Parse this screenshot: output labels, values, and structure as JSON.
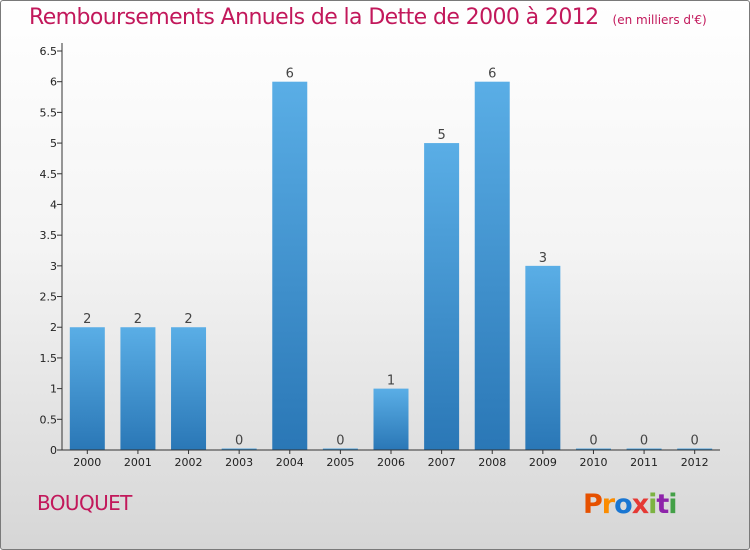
{
  "header": {
    "title": "Remboursements Annuels de la Dette de 2000 à 2012",
    "unit_note": "(en milliers d'€)"
  },
  "commune": "BOUQUET",
  "logo": {
    "letters": [
      "P",
      "r",
      "o",
      "x",
      "i",
      "t",
      "i"
    ],
    "colors": [
      "#e65100",
      "#fb8c00",
      "#1976d2",
      "#e53935",
      "#7cb342",
      "#8e24aa",
      "#43a047"
    ]
  },
  "colors": {
    "title": "#c2185b",
    "bar_top": "#5aaee6",
    "bar_bottom": "#2a77b6",
    "axis": "#333333"
  },
  "chart_data": {
    "type": "bar",
    "title": "Remboursements Annuels de la Dette de 2000 à 2012",
    "categories": [
      "2000",
      "2001",
      "2002",
      "2003",
      "2004",
      "2005",
      "2006",
      "2007",
      "2008",
      "2009",
      "2010",
      "2011",
      "2012"
    ],
    "values": [
      2,
      2,
      2,
      0,
      6,
      0,
      1,
      5,
      6,
      3,
      0,
      0,
      0
    ],
    "data_labels": [
      "2",
      "2",
      "2",
      "0",
      "6",
      "0",
      "1",
      "5",
      "6",
      "3",
      "0",
      "0",
      "0"
    ],
    "y_ticks": [
      "0",
      "0.5",
      "1",
      "1.5",
      "2",
      "2.5",
      "3",
      "3.5",
      "4",
      "4.5",
      "5",
      "5.5",
      "6",
      "6.5"
    ],
    "ylim": [
      0,
      6.5
    ],
    "grid": false
  }
}
